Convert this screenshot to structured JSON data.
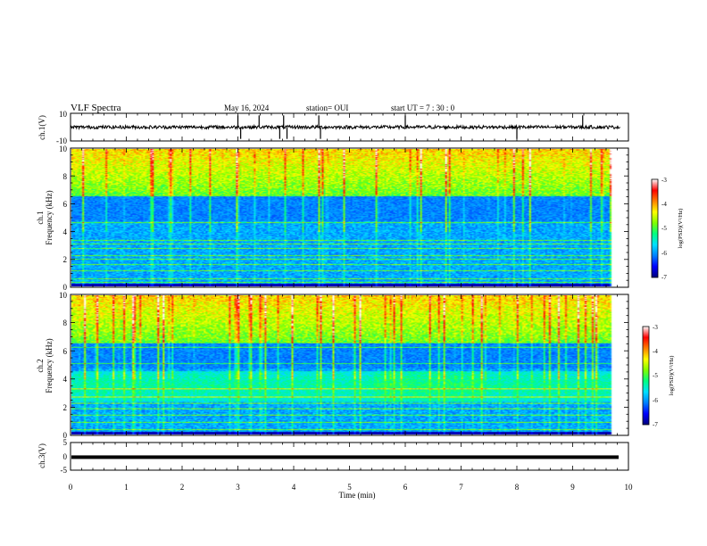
{
  "header": {
    "title": "VLF Spectra",
    "date": "May 16, 2024",
    "station": "station= OUI",
    "start_ut": "start  UT =   7 : 30 : 0"
  },
  "chart_data": [
    {
      "type": "line",
      "id": "ch1-waveform",
      "ylabel": "ch.1(V)",
      "ylim": [
        -10,
        10
      ],
      "y_ticklabels": [
        "10",
        "-10"
      ],
      "xlim": [
        0,
        10
      ],
      "baseline": 0,
      "spikes_minutes": [
        3.0,
        3.05,
        3.38,
        3.75,
        3.82,
        3.88,
        4.45,
        4.48,
        6.0,
        8.0,
        9.18
      ]
    },
    {
      "type": "heatmap",
      "id": "ch1-spectrogram",
      "ylabel": "ch.1\nFrequency (kHz)",
      "ylim": [
        0,
        10
      ],
      "y_ticklabels": [
        "0",
        "2",
        "4",
        "6",
        "8",
        "10"
      ],
      "xlim": [
        0,
        10
      ],
      "data_end_minute": 9.85,
      "colorbar": {
        "label": "log(PSD)(V²/Hz)",
        "range": [
          -7,
          -3
        ],
        "ticklabels": [
          "-3",
          "-4",
          "-5",
          "-6",
          "-7"
        ]
      },
      "bands_khz": [
        0.3,
        0.6,
        1.2,
        1.6,
        2.0,
        2.3,
        2.8,
        3.1,
        3.4,
        4.7
      ]
    },
    {
      "type": "heatmap",
      "id": "ch2-spectrogram",
      "ylabel": "ch.2\nFrequency (kHz)",
      "ylim": [
        0,
        10
      ],
      "y_ticklabels": [
        "0",
        "2",
        "4",
        "6",
        "8",
        "10"
      ],
      "xlim": [
        0,
        10
      ],
      "data_end_minute": 9.85,
      "colorbar": {
        "label": "log(PSD)(V²/Hz)",
        "range": [
          -7,
          -3
        ],
        "ticklabels": [
          "-3",
          "-4",
          "-5",
          "-6",
          "-7"
        ]
      },
      "bands_khz": [
        0.4,
        0.9,
        1.4,
        1.9,
        2.3,
        2.7,
        3.3,
        5.1,
        6.3
      ]
    },
    {
      "type": "line",
      "id": "ch3-waveform",
      "ylabel": "ch.3(V)",
      "ylim": [
        -5,
        5
      ],
      "y_ticklabels": [
        "5",
        "0",
        "-5"
      ],
      "xlim": [
        0,
        10
      ],
      "constant_value": -0.3
    }
  ],
  "x_axis": {
    "label": "Time  (min)",
    "ticklabels": [
      "0",
      "1",
      "2",
      "3",
      "4",
      "5",
      "6",
      "7",
      "8",
      "9",
      "10"
    ]
  },
  "colormap": [
    "#00007a",
    "#0000ff",
    "#0080ff",
    "#00e0ff",
    "#00ff80",
    "#80ff00",
    "#ffff00",
    "#ff8000",
    "#ff0000",
    "#ffffff"
  ]
}
